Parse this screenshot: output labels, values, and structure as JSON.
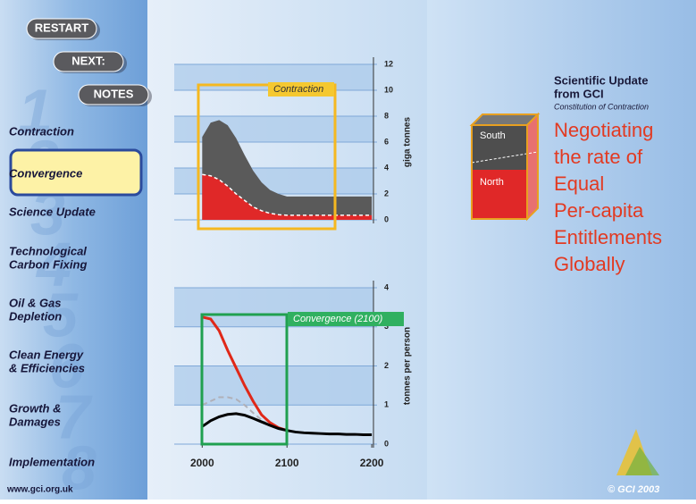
{
  "nav": {
    "buttons": [
      "RESTART",
      "NEXT:",
      "NOTES"
    ],
    "items": [
      [
        "Contraction"
      ],
      [
        "Convergence"
      ],
      [
        "Science Update"
      ],
      [
        "Technological",
        "Carbon Fixing"
      ],
      [
        "Oil & Gas",
        "Depletion"
      ],
      [
        "Clean Energy",
        "& Efficiencies"
      ],
      [
        "Growth &",
        "Damages"
      ],
      [
        "Implementation"
      ]
    ],
    "watermark": [
      "1",
      "2",
      "3",
      "4",
      "5",
      "6",
      "7",
      "8"
    ],
    "url": "www.gci.org.uk"
  },
  "header": {
    "title": [
      "Scientific Update",
      "from GCI"
    ],
    "subtitle": "Constitution of Contraction"
  },
  "cube": {
    "top_label": "South",
    "bottom_label": "North"
  },
  "headline": [
    "Negotiating",
    "the rate of",
    "Equal",
    "Per-capita",
    "Entitlements",
    "Globally"
  ],
  "footer": "© GCI 2003",
  "chart_data": [
    {
      "type": "area",
      "annotation": "Contraction",
      "y_label": "giga tonnes",
      "x": [
        2000,
        2010,
        2020,
        2030,
        2040,
        2050,
        2060,
        2070,
        2080,
        2090,
        2100,
        2110,
        2120,
        2130,
        2140,
        2150,
        2160,
        2170,
        2180,
        2190,
        2200
      ],
      "series": [
        {
          "color": "#5a5a5a",
          "values": [
            6.4,
            7.5,
            7.7,
            7.3,
            6.3,
            5.0,
            3.8,
            2.9,
            2.3,
            2.0,
            1.8,
            1.8,
            1.8,
            1.8,
            1.8,
            1.8,
            1.8,
            1.8,
            1.8,
            1.8,
            1.8
          ]
        },
        {
          "color": "#e02828",
          "values": [
            3.5,
            3.4,
            3.1,
            2.6,
            2.0,
            1.5,
            1.0,
            0.7,
            0.5,
            0.4,
            0.35,
            0.35,
            0.35,
            0.35,
            0.35,
            0.35,
            0.35,
            0.35,
            0.35,
            0.35,
            0.35
          ]
        }
      ],
      "xlim": [
        1967,
        2202
      ],
      "ylim": [
        0,
        12
      ],
      "yticks": [
        0,
        2,
        4,
        6,
        8,
        10,
        12
      ]
    },
    {
      "type": "line",
      "annotation": "Convergence (2100)",
      "y_label": "tonnes per person",
      "x": [
        2000,
        2010,
        2020,
        2030,
        2040,
        2050,
        2060,
        2070,
        2080,
        2090,
        2100,
        2110,
        2120,
        2130,
        2140,
        2150,
        2160,
        2170,
        2180,
        2190,
        2200
      ],
      "series": [
        {
          "color": "#e02818",
          "values": [
            3.25,
            3.2,
            2.9,
            2.4,
            1.95,
            1.5,
            1.1,
            0.75,
            0.55,
            0.42,
            0.35,
            null,
            null,
            null,
            null,
            null,
            null,
            null,
            null,
            null,
            null
          ]
        },
        {
          "color": "#b0b0b8",
          "dashed": true,
          "values": [
            1.0,
            1.1,
            1.2,
            1.2,
            1.15,
            1.0,
            0.8,
            0.62,
            0.48,
            0.4,
            0.35,
            null,
            null,
            null,
            null,
            null,
            null,
            null,
            null,
            null,
            null
          ]
        },
        {
          "color": "#000000",
          "values": [
            0.45,
            0.6,
            0.7,
            0.76,
            0.78,
            0.74,
            0.66,
            0.57,
            0.48,
            0.4,
            0.35,
            0.31,
            0.29,
            0.28,
            0.27,
            0.26,
            0.26,
            0.25,
            0.25,
            0.24,
            0.24
          ]
        }
      ],
      "xlim": [
        1967,
        2202
      ],
      "ylim": [
        0,
        4
      ],
      "yticks": [
        0,
        1,
        2,
        3,
        4
      ],
      "xticks": [
        2000,
        2100,
        2200
      ]
    }
  ]
}
